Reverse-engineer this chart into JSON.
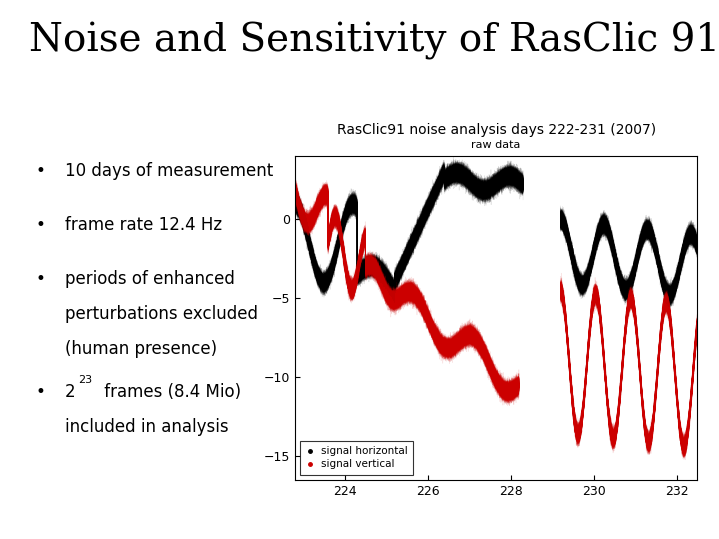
{
  "title": "Noise and Sensitivity of RasClic 91",
  "chart_title": "RasClic91 noise analysis days 222-231 (2007)",
  "chart_subtitle": "raw data",
  "xlabel_vals": [
    224,
    226,
    228,
    230,
    232
  ],
  "xlim": [
    222.8,
    232.5
  ],
  "ylim": [
    -16.5,
    4.0
  ],
  "yticks": [
    0,
    -5,
    -10,
    -15
  ],
  "legend_labels": [
    "signal horizontal",
    "signal vertical"
  ],
  "legend_colors": [
    "#000000",
    "#cc0000"
  ],
  "bg_color": "#ffffff",
  "seed": 42,
  "title_fontsize": 28,
  "bullet_fontsize": 12,
  "chart_title_fontsize": 10,
  "subtitle_fontsize": 8
}
